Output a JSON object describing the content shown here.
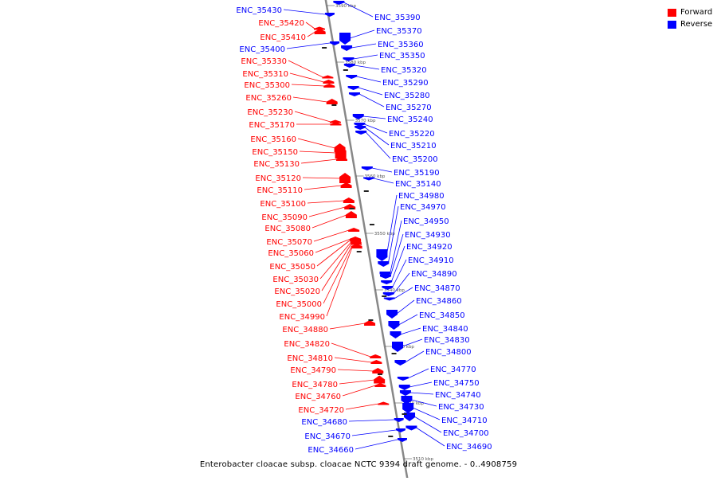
{
  "legend": {
    "forward_label": "Forward",
    "reverse_label": "Reverse",
    "forward_color": "#ff0000",
    "reverse_color": "#0000ff"
  },
  "caption": "Enterobacter cloacae subsp. cloacae NCTC 9394 draft genome. - 0..4908759",
  "ticks": [
    "3590 kbp",
    "3580 kbp",
    "3570 kbp",
    "3560 kbp",
    "3550 kbp",
    "3540 kbp",
    "3530 kbp",
    "3520 kbp",
    "3510 kbp"
  ],
  "forward_genes": [
    "ENC_35420",
    "ENC_35410",
    "ENC_35330",
    "ENC_35310",
    "ENC_35300",
    "ENC_35260",
    "ENC_35230",
    "ENC_35170",
    "ENC_35160",
    "ENC_35150",
    "ENC_35130",
    "ENC_35120",
    "ENC_35110",
    "ENC_35100",
    "ENC_35090",
    "ENC_35080",
    "ENC_35070",
    "ENC_35060",
    "ENC_35050",
    "ENC_35030",
    "ENC_35020",
    "ENC_35000",
    "ENC_34990",
    "ENC_34880",
    "ENC_34820",
    "ENC_34810",
    "ENC_34790",
    "ENC_34780",
    "ENC_34760",
    "ENC_34720"
  ],
  "reverse_genes_left": [
    "ENC_35430",
    "ENC_35400",
    "ENC_34680",
    "ENC_34670",
    "ENC_34660"
  ],
  "reverse_genes_right": [
    "ENC_35390",
    "ENC_35370",
    "ENC_35360",
    "ENC_35350",
    "ENC_35320",
    "ENC_35290",
    "ENC_35280",
    "ENC_35270",
    "ENC_35240",
    "ENC_35220",
    "ENC_35210",
    "ENC_35200",
    "ENC_35190",
    "ENC_35140",
    "ENC_34980",
    "ENC_34970",
    "ENC_34950",
    "ENC_34930",
    "ENC_34920",
    "ENC_34910",
    "ENC_34890",
    "ENC_34870",
    "ENC_34860",
    "ENC_34850",
    "ENC_34840",
    "ENC_34830",
    "ENC_34800",
    "ENC_34770",
    "ENC_34750",
    "ENC_34740",
    "ENC_34730",
    "ENC_34710",
    "ENC_34700",
    "ENC_34690"
  ]
}
